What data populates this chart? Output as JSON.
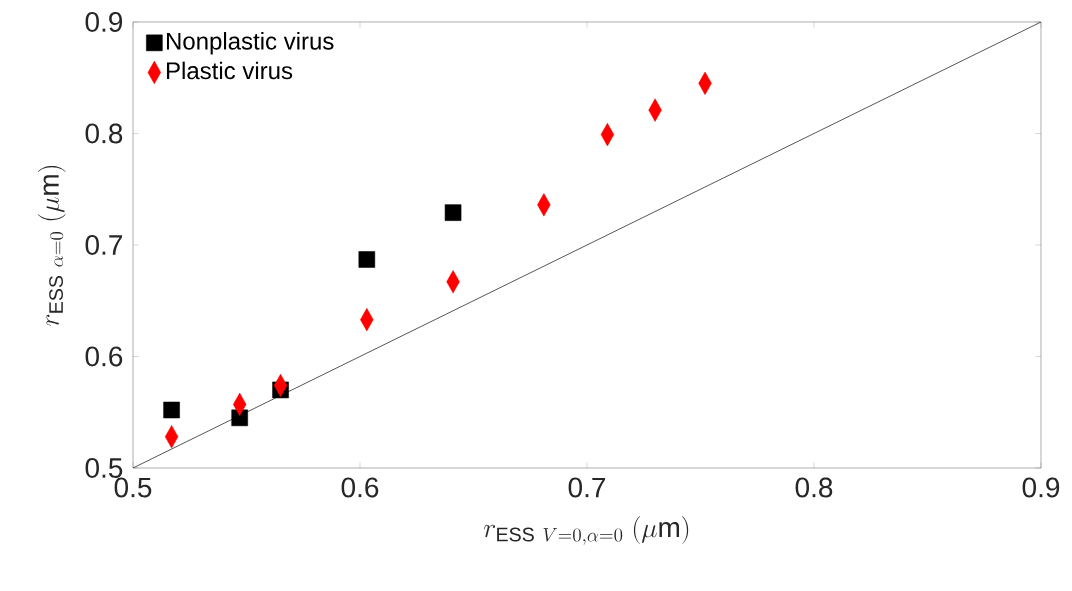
{
  "chart_data": {
    "type": "scatter",
    "xlabel": "r_{\\mathrm{ESS}\\ V=0,\\alpha=0}\\ (\\mu\\mathrm{m})",
    "ylabel": "r_{\\mathrm{ESS}\\ \\alpha=0}\\ (\\mu\\mathrm{m})",
    "xlim": [
      0.5,
      0.9
    ],
    "ylim": [
      0.5,
      0.9
    ],
    "xticks": [
      0.5,
      0.6,
      0.7,
      0.8,
      0.9
    ],
    "yticks": [
      0.5,
      0.6,
      0.7,
      0.8,
      0.9
    ],
    "grid": false,
    "legend": "top left",
    "series": [
      {
        "type": "line",
        "color": "#000000",
        "marker": "none",
        "line_style": "solid",
        "x": [
          0.5,
          0.9
        ],
        "values": [
          0.5,
          0.9
        ]
      },
      {
        "name": "Nonplastic virus",
        "color": "#000000",
        "marker": "square",
        "x": [
          0.517,
          0.547,
          0.565,
          0.603,
          0.641
        ],
        "values": [
          0.552,
          0.545,
          0.57,
          0.687,
          0.729
        ]
      },
      {
        "name": "Plastic virus",
        "color": "#ff0000",
        "marker": "diamond",
        "x": [
          0.517,
          0.547,
          0.565,
          0.603,
          0.641,
          0.681,
          0.709,
          0.73,
          0.752
        ],
        "values": [
          0.528,
          0.557,
          0.574,
          0.633,
          0.667,
          0.736,
          0.799,
          0.821,
          0.845
        ]
      }
    ]
  }
}
